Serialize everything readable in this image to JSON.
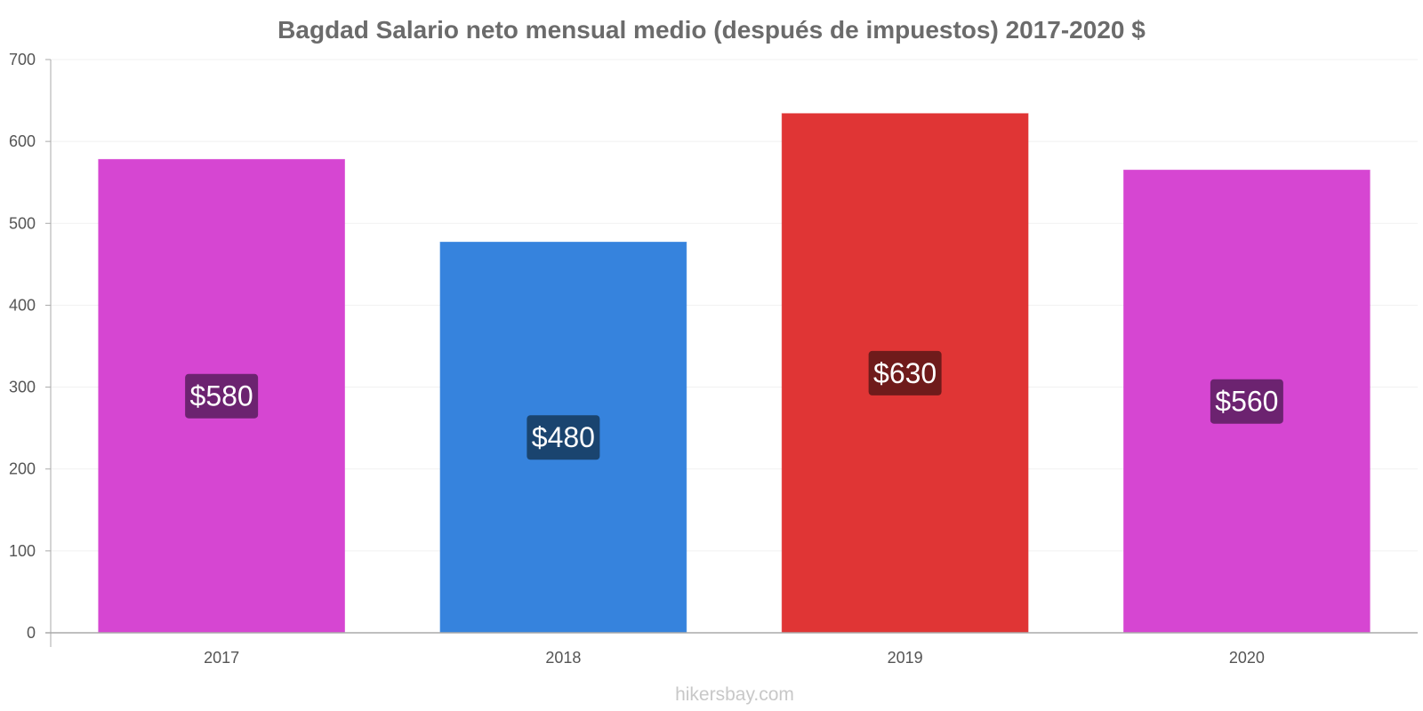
{
  "chart_data": {
    "type": "bar",
    "title": "Bagdad Salario neto mensual medio (después de impuestos) 2017-2020 $",
    "categories": [
      "2017",
      "2018",
      "2019",
      "2020"
    ],
    "values": [
      578,
      477,
      634,
      565
    ],
    "data_labels": [
      "$580",
      "$480",
      "$630",
      "$560"
    ],
    "bar_colors": [
      "#d646d2",
      "#3683dd",
      "#e03535",
      "#d646d2"
    ],
    "label_colors": [
      "#6c2370",
      "#1a446f",
      "#6f1b1b",
      "#6c2370"
    ],
    "ylim": [
      0,
      700
    ],
    "yticks": [
      0,
      100,
      200,
      300,
      400,
      500,
      600,
      700
    ],
    "xlabel": "",
    "ylabel": "",
    "grid": true,
    "legend": "none"
  },
  "watermark": "hikersbay.com"
}
